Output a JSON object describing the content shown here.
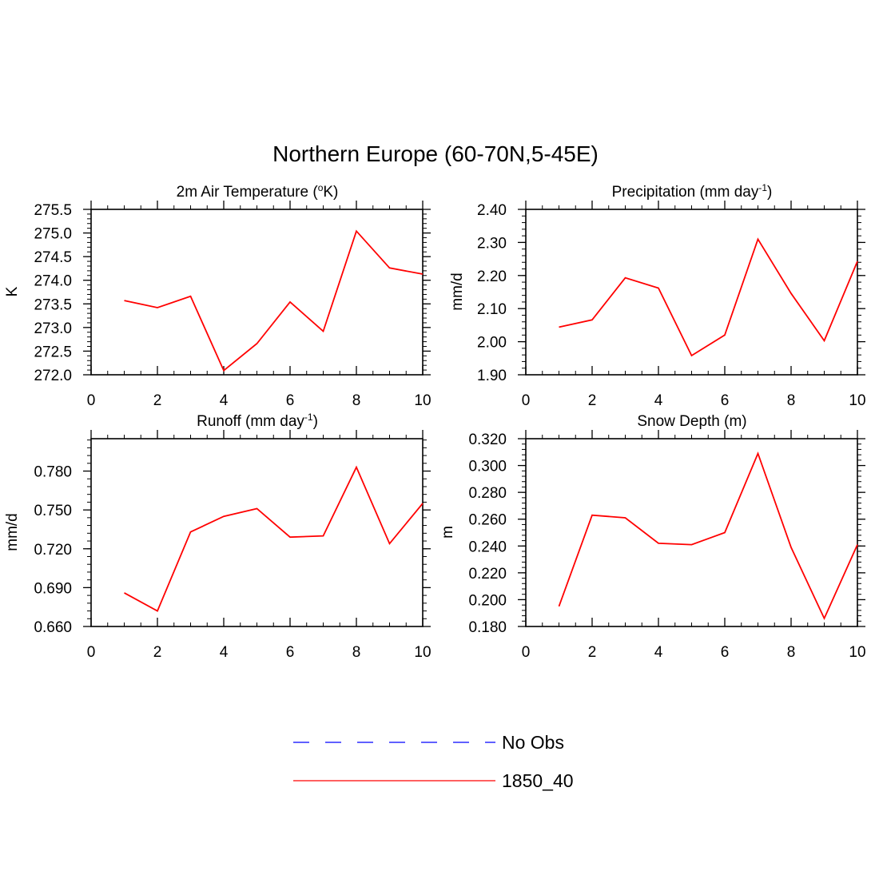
{
  "figure": {
    "title": "Northern Europe (60-70N,5-45E)"
  },
  "legend": {
    "placement": "bottom-center",
    "entries": [
      {
        "label": "No Obs",
        "color": "#0000ff",
        "dash": "dashed"
      },
      {
        "label": "1850_40",
        "color": "#ff0000",
        "dash": "solid"
      }
    ]
  },
  "chart_data": [
    {
      "type": "line",
      "title": "2m Air Temperature (oK)",
      "title_main": "2m Air Temperature (",
      "title_sup": "o",
      "title_end": "K)",
      "xlabel": "",
      "ylabel": "K",
      "xlim": [
        0,
        10
      ],
      "ylim": [
        272.0,
        275.5
      ],
      "xticks": [
        "0",
        "2",
        "4",
        "6",
        "8",
        "10"
      ],
      "yticks": [
        "272.0",
        "272.5",
        "273.0",
        "273.5",
        "274.0",
        "274.5",
        "275.0",
        "275.5"
      ],
      "grid": false,
      "series": [
        {
          "name": "1850_40",
          "color": "#ff0000",
          "x": [
            1,
            2,
            3,
            4,
            5,
            6,
            7,
            8,
            9,
            10
          ],
          "y": [
            273.57,
            273.42,
            273.66,
            272.09,
            272.66,
            273.54,
            272.92,
            275.04,
            274.26,
            274.13
          ]
        }
      ]
    },
    {
      "type": "line",
      "title": "Precipitation (mm day-1)",
      "title_main": "Precipitation (mm day",
      "title_sup": "-1",
      "title_end": ")",
      "xlabel": "",
      "ylabel": "mm/d",
      "xlim": [
        0,
        10
      ],
      "ylim": [
        1.9,
        2.4
      ],
      "xticks": [
        "0",
        "2",
        "4",
        "6",
        "8",
        "10"
      ],
      "yticks": [
        "1.90",
        "2.00",
        "2.10",
        "2.20",
        "2.30",
        "2.40"
      ],
      "grid": false,
      "series": [
        {
          "name": "1850_40",
          "color": "#ff0000",
          "x": [
            1,
            2,
            3,
            4,
            5,
            6,
            7,
            8,
            9,
            10
          ],
          "y": [
            2.044,
            2.066,
            2.193,
            2.162,
            1.958,
            2.02,
            2.31,
            2.146,
            2.003,
            2.243
          ]
        }
      ]
    },
    {
      "type": "line",
      "title": "Runoff (mm day-1)",
      "title_main": "Runoff (mm day",
      "title_sup": "-1",
      "title_end": ")",
      "xlabel": "",
      "ylabel": "mm/d",
      "xlim": [
        0,
        10
      ],
      "ylim": [
        0.66,
        0.805
      ],
      "xticks": [
        "0",
        "2",
        "4",
        "6",
        "8",
        "10"
      ],
      "yticks": [
        "0.660",
        "0.690",
        "0.720",
        "0.750",
        "0.780"
      ],
      "grid": false,
      "series": [
        {
          "name": "1850_40",
          "color": "#ff0000",
          "x": [
            1,
            2,
            3,
            4,
            5,
            6,
            7,
            8,
            9,
            10
          ],
          "y": [
            0.686,
            0.672,
            0.733,
            0.745,
            0.751,
            0.729,
            0.73,
            0.783,
            0.724,
            0.755
          ]
        }
      ]
    },
    {
      "type": "line",
      "title": "Snow Depth (m)",
      "title_main": "Snow Depth (m)",
      "title_sup": "",
      "title_end": "",
      "xlabel": "",
      "ylabel": "m",
      "xlim": [
        0,
        10
      ],
      "ylim": [
        0.18,
        0.32
      ],
      "xticks": [
        "0",
        "2",
        "4",
        "6",
        "8",
        "10"
      ],
      "yticks": [
        "0.180",
        "0.200",
        "0.220",
        "0.240",
        "0.260",
        "0.280",
        "0.300",
        "0.320"
      ],
      "grid": false,
      "series": [
        {
          "name": "1850_40",
          "color": "#ff0000",
          "x": [
            1,
            2,
            3,
            4,
            5,
            6,
            7,
            8,
            9,
            10
          ],
          "y": [
            0.195,
            0.263,
            0.261,
            0.242,
            0.241,
            0.25,
            0.309,
            0.239,
            0.186,
            0.241
          ]
        }
      ]
    }
  ]
}
